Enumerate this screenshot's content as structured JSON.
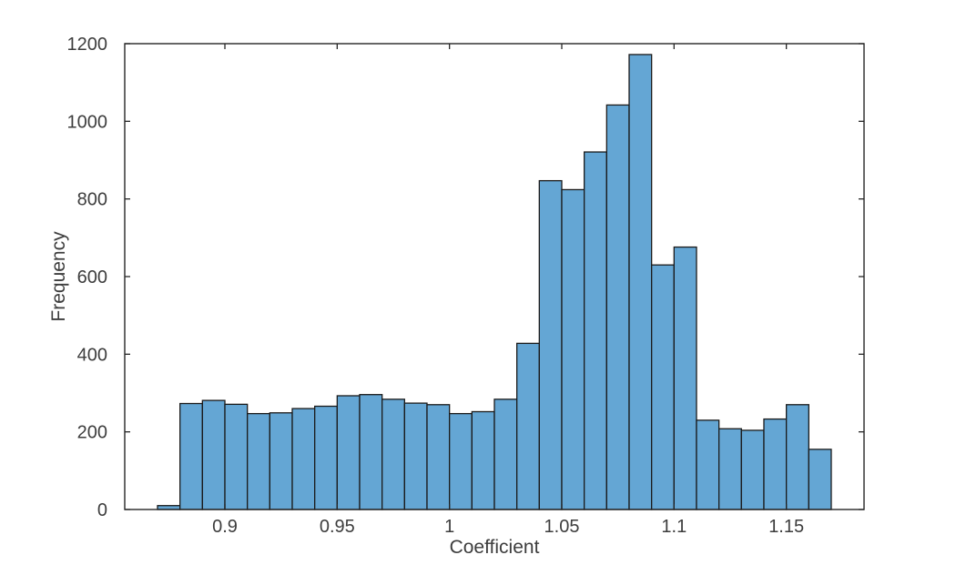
{
  "figure": {
    "background": "#ffffff"
  },
  "chart_data": {
    "type": "bar",
    "subtype": "histogram",
    "title": "",
    "xlabel": "Coefficient",
    "ylabel": "Frequency",
    "bin_start": 0.87,
    "bin_width": 0.01,
    "values": [
      10,
      273,
      281,
      271,
      247,
      249,
      260,
      266,
      293,
      296,
      284,
      274,
      270,
      247,
      252,
      284,
      428,
      847,
      824,
      921,
      1042,
      1172,
      630,
      676,
      230,
      208,
      204,
      233,
      270,
      155
    ],
    "xlim": [
      0.8554,
      1.1846
    ],
    "ylim": [
      0,
      1200
    ],
    "xticks": [
      0.9,
      0.95,
      1.0,
      1.05,
      1.1,
      1.15
    ],
    "xtick_labels": [
      "0.9",
      "0.95",
      "1",
      "1.05",
      "1.1",
      "1.15"
    ],
    "yticks": [
      0,
      200,
      400,
      600,
      800,
      1000,
      1200
    ],
    "ytick_labels": [
      "0",
      "200",
      "400",
      "600",
      "800",
      "1000",
      "1200"
    ],
    "grid": false,
    "legend": null,
    "box": true,
    "tick_direction": "in",
    "colors": {
      "bar_face": "#64a6d4",
      "bar_edge": "#1a1a1a",
      "axis": "#262626",
      "text": "#3d3d3d",
      "background": "#ffffff"
    }
  }
}
